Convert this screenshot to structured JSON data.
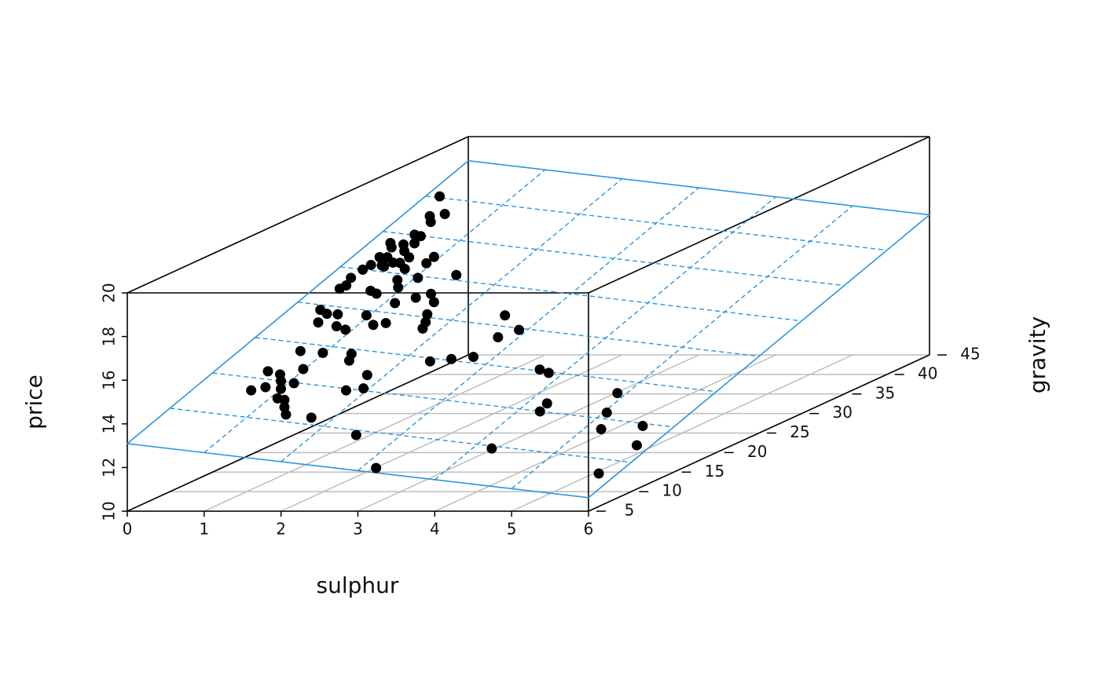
{
  "chart_data": {
    "type": "scatter3d",
    "xlabel": "sulphur",
    "ylabel": "gravity",
    "zlabel": "price",
    "xlim": [
      0,
      6
    ],
    "xticks": [
      0,
      1,
      2,
      3,
      4,
      5,
      6
    ],
    "ylim": [
      5,
      45
    ],
    "yticks": [
      5,
      10,
      15,
      20,
      25,
      30,
      35,
      40,
      45
    ],
    "zlim": [
      10,
      20
    ],
    "zticks": [
      10,
      12,
      14,
      16,
      18,
      20
    ],
    "grid": true,
    "color": "#000000",
    "plane": {
      "intercept": 12.37,
      "x": -0.413,
      "y": 0.145,
      "color": "#2b95de"
    },
    "x": [
      0.16,
      0.32,
      0.46,
      0.41,
      0.4,
      0.49,
      0.24,
      0.41,
      0.52,
      0.31,
      0.51,
      0.31,
      0.4,
      0.65,
      0.93,
      0.32,
      0.45,
      0.54,
      0.62,
      0.29,
      0.49,
      0.76,
      0.93,
      0.27,
      0.83,
      1.03,
      1.43,
      0.94,
      0.29,
      0.32,
      0.67,
      0.78,
      1.4,
      1.55,
      1.12,
      1.28,
      0.36,
      0.49,
      0.62,
      0.96,
      0.51,
      0.77,
      1.17,
      1.29,
      1.64,
      1.73,
      1.78,
      0.92,
      2.54,
      2.76,
      2.9,
      0.7,
      0.98,
      1.32,
      1.39,
      2.32,
      2.53,
      2.75,
      0.61,
      0.79,
      0.98,
      1.07,
      0.89,
      1.79,
      0.68,
      0.8,
      1.0,
      1.76,
      1.93,
      1.09,
      1.19,
      1.29,
      1.41,
      1.74,
      2.49,
      3.68,
      3.83,
      4.89,
      4.23,
      4.26,
      5.04,
      5.2,
      5.63,
      5.83,
      4.22,
      3.17,
      5.79
    ],
    "y": [
      40.2,
      37.6,
      38.1,
      36.9,
      35.1,
      35.0,
      33.7,
      33.7,
      34.0,
      33.2,
      32.9,
      31.8,
      31.9,
      32.2,
      32.6,
      30.7,
      30.8,
      31.3,
      31.4,
      30.0,
      30.7,
      30.7,
      31.7,
      28.8,
      29.2,
      29.8,
      30.7,
      28.3,
      27.3,
      27.8,
      27.5,
      27.2,
      28.0,
      27.0,
      26.3,
      27.3,
      24.4,
      24.0,
      24.1,
      24.4,
      22.8,
      22.6,
      23.3,
      23.7,
      25.4,
      24.4,
      23.6,
      22.3,
      26.4,
      23.6,
      24.8,
      19.0,
      19.1,
      19.4,
      18.5,
      19.6,
      20.2,
      20.8,
      16.0,
      15.8,
      16.8,
      14.9,
      15.0,
      17.0,
      13.4,
      14.0,
      14.0,
      14.8,
      15.3,
      12.8,
      12.7,
      11.8,
      10.9,
      10.9,
      9.4,
      20.2,
      19.9,
      18.4,
      16.1,
      15.0,
      15.8,
      13.7,
      14.7,
      12.2,
      9.7,
      5.6,
      8.1
    ],
    "z": [
      18.12,
      17.68,
      17.69,
      17.54,
      17.28,
      17.23,
      17.15,
      17.08,
      17.08,
      17.04,
      16.92,
      16.84,
      16.82,
      16.76,
      16.71,
      16.68,
      16.64,
      16.68,
      16.65,
      16.59,
      16.61,
      16.5,
      16.58,
      16.43,
      16.26,
      16.25,
      16.22,
      16.08,
      16.2,
      16.26,
      16.07,
      15.99,
      15.84,
      15.64,
      15.72,
      15.79,
      15.75,
      15.64,
      15.6,
      15.5,
      15.46,
      15.32,
      15.26,
      15.27,
      15.37,
      15.19,
      15.04,
      15.22,
      15.14,
      14.64,
      14.76,
      14.83,
      14.73,
      14.63,
      14.48,
      14.25,
      14.25,
      14.24,
      14.44,
      14.33,
      14.4,
      14.09,
      14.17,
      14.09,
      14.03,
      14.07,
      13.99,
      13.78,
      13.78,
      13.77,
      13.72,
      13.55,
      13.37,
      13.23,
      12.7,
      13.77,
      13.67,
      13.01,
      12.95,
      12.78,
      12.58,
      12.2,
      12.17,
      11.73,
      12.03,
      11.87,
      11.17
    ]
  }
}
